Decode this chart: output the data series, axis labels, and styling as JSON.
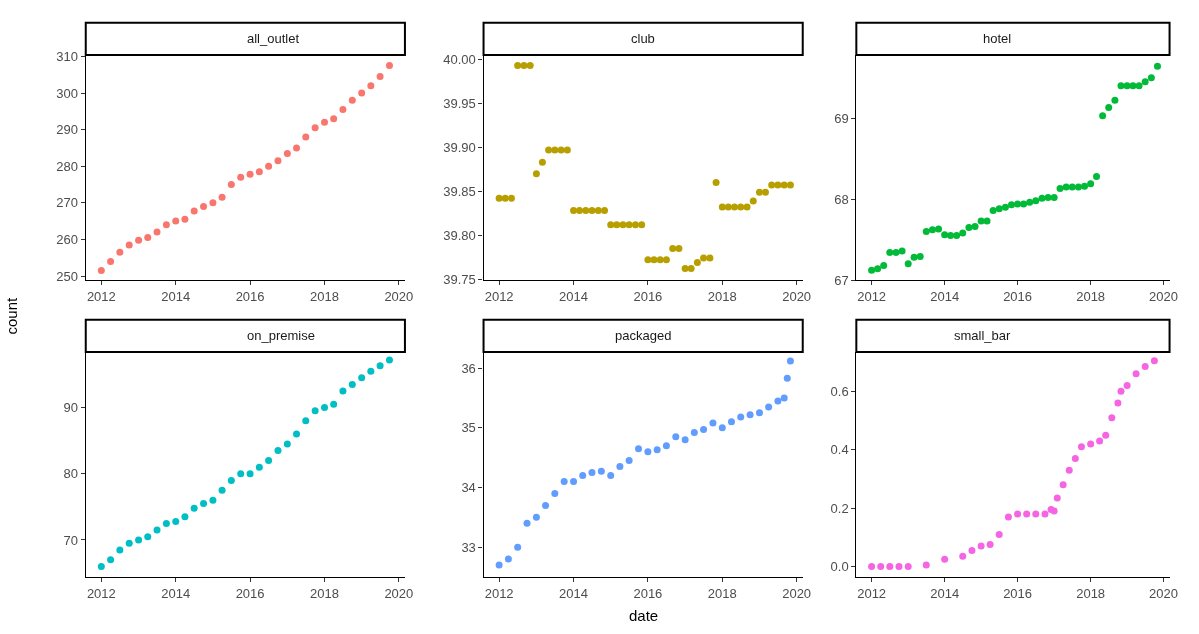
{
  "chart_data": [
    {
      "type": "scatter",
      "title": "all_outlet",
      "marker": "circle",
      "xlim": [
        "2011-08",
        "2020-03"
      ],
      "xticks": [
        "2012",
        "2014",
        "2016",
        "2018",
        "2020"
      ],
      "ylim": [
        248.9,
        310.4
      ],
      "yticks": [
        250,
        260,
        270,
        280,
        290,
        300,
        310
      ],
      "x": [
        "2012-01",
        "2012-04",
        "2012-07",
        "2012-10",
        "2013-01",
        "2013-04",
        "2013-07",
        "2013-10",
        "2014-01",
        "2014-04",
        "2014-07",
        "2014-10",
        "2015-01",
        "2015-04",
        "2015-07",
        "2015-10",
        "2016-01",
        "2016-04",
        "2016-07",
        "2016-10",
        "2017-01",
        "2017-04",
        "2017-07",
        "2017-10",
        "2018-01",
        "2018-04",
        "2018-07",
        "2018-10",
        "2019-01",
        "2019-04",
        "2019-07",
        "2019-10"
      ],
      "series": [
        {
          "color": "#f8766d",
          "values": [
            251.5,
            254,
            256.5,
            258.5,
            259.8,
            260.5,
            262,
            264,
            265,
            265.5,
            267.8,
            269,
            270,
            271.5,
            275,
            277,
            277.8,
            278.5,
            280,
            281.5,
            283.5,
            285,
            288,
            290.5,
            292,
            293,
            295.5,
            298,
            300,
            302,
            304.5,
            307.5
          ]
        }
      ]
    },
    {
      "type": "scatter",
      "title": "club",
      "marker": "circle",
      "xlim": [
        "2011-08",
        "2020-03"
      ],
      "xticks": [
        "2012",
        "2014",
        "2016",
        "2018",
        "2020"
      ],
      "ylim": [
        39.749,
        40.005
      ],
      "yticks": [
        {
          "value": 39.75,
          "label": "39.75"
        },
        {
          "value": 39.8,
          "label": "39.80"
        },
        {
          "value": 39.85,
          "label": "39.85"
        },
        {
          "value": 39.9,
          "label": "39.90"
        },
        {
          "value": 39.95,
          "label": "39.95"
        },
        {
          "value": 40.0,
          "label": "40.00"
        }
      ],
      "x": [
        "2012-01",
        "2012-03",
        "2012-05",
        "2012-07",
        "2012-09",
        "2012-11",
        "2013-01",
        "2013-03",
        "2013-05",
        "2013-07",
        "2013-09",
        "2013-11",
        "2014-01",
        "2014-03",
        "2014-05",
        "2014-07",
        "2014-09",
        "2014-11",
        "2015-01",
        "2015-03",
        "2015-05",
        "2015-07",
        "2015-09",
        "2015-11",
        "2016-01",
        "2016-03",
        "2016-05",
        "2016-07",
        "2016-09",
        "2016-11",
        "2017-01",
        "2017-03",
        "2017-05",
        "2017-07",
        "2017-09",
        "2017-11",
        "2018-01",
        "2018-03",
        "2018-05",
        "2018-07",
        "2018-09",
        "2018-11",
        "2019-01",
        "2019-03",
        "2019-05",
        "2019-07",
        "2019-09",
        "2019-11"
      ],
      "series": [
        {
          "color": "#b79f00",
          "values": [
            39.842,
            39.842,
            39.842,
            39.993,
            39.993,
            39.993,
            39.87,
            39.883,
            39.897,
            39.897,
            39.897,
            39.897,
            39.828,
            39.828,
            39.828,
            39.828,
            39.828,
            39.828,
            39.812,
            39.812,
            39.812,
            39.812,
            39.812,
            39.812,
            39.772,
            39.772,
            39.772,
            39.772,
            39.785,
            39.785,
            39.762,
            39.762,
            39.769,
            39.774,
            39.774,
            39.86,
            39.832,
            39.832,
            39.832,
            39.832,
            39.832,
            39.839,
            39.849,
            39.849,
            39.857,
            39.857,
            39.857,
            39.857
          ]
        }
      ]
    },
    {
      "type": "scatter",
      "title": "hotel",
      "marker": "circle",
      "xlim": [
        "2011-08",
        "2020-03"
      ],
      "xticks": [
        "2012",
        "2014",
        "2016",
        "2018",
        "2020"
      ],
      "ylim": [
        67,
        69.78
      ],
      "yticks": [
        67,
        68,
        69
      ],
      "x": [
        "2012-01",
        "2012-03",
        "2012-05",
        "2012-07",
        "2012-09",
        "2012-11",
        "2013-01",
        "2013-03",
        "2013-05",
        "2013-07",
        "2013-09",
        "2013-11",
        "2014-01",
        "2014-03",
        "2014-05",
        "2014-07",
        "2014-09",
        "2014-11",
        "2015-01",
        "2015-03",
        "2015-05",
        "2015-07",
        "2015-09",
        "2015-11",
        "2016-01",
        "2016-03",
        "2016-05",
        "2016-07",
        "2016-09",
        "2016-11",
        "2017-01",
        "2017-03",
        "2017-05",
        "2017-07",
        "2017-09",
        "2017-11",
        "2018-01",
        "2018-03",
        "2018-05",
        "2018-07",
        "2018-09",
        "2018-11",
        "2019-01",
        "2019-03",
        "2019-05",
        "2019-07",
        "2019-09",
        "2019-11"
      ],
      "series": [
        {
          "color": "#00ba38",
          "values": [
            67.12,
            67.14,
            67.18,
            67.34,
            67.34,
            67.36,
            67.2,
            67.28,
            67.29,
            67.6,
            67.62,
            67.63,
            67.56,
            67.55,
            67.55,
            67.58,
            67.65,
            67.66,
            67.73,
            67.73,
            67.86,
            67.88,
            67.9,
            67.93,
            67.94,
            67.94,
            67.96,
            67.98,
            68.01,
            68.02,
            68.02,
            68.13,
            68.15,
            68.15,
            68.15,
            68.16,
            68.19,
            68.28,
            69.03,
            69.13,
            69.22,
            69.4,
            69.4,
            69.4,
            69.4,
            69.45,
            69.5,
            69.64
          ]
        }
      ]
    },
    {
      "type": "scatter",
      "title": "on_premise",
      "ylabel": "count",
      "marker": "circle",
      "xlim": [
        "2011-08",
        "2020-03"
      ],
      "xticks": [
        "2012",
        "2014",
        "2016",
        "2018",
        "2020"
      ],
      "ylim": [
        64.4,
        98.4
      ],
      "yticks": [
        70,
        80,
        90
      ],
      "x": [
        "2012-01",
        "2012-04",
        "2012-07",
        "2012-10",
        "2013-01",
        "2013-04",
        "2013-07",
        "2013-10",
        "2014-01",
        "2014-04",
        "2014-07",
        "2014-10",
        "2015-01",
        "2015-04",
        "2015-07",
        "2015-10",
        "2016-01",
        "2016-04",
        "2016-07",
        "2016-10",
        "2017-01",
        "2017-04",
        "2017-07",
        "2017-10",
        "2018-01",
        "2018-04",
        "2018-07",
        "2018-10",
        "2019-01",
        "2019-04",
        "2019-07",
        "2019-10"
      ],
      "series": [
        {
          "color": "#00bfc4",
          "values": [
            66,
            67,
            68.5,
            69.5,
            70,
            70.5,
            71.5,
            72.5,
            72.8,
            73.5,
            74.8,
            75.5,
            76,
            77.5,
            79,
            80,
            80,
            81,
            82,
            83.5,
            84.5,
            86,
            88,
            89.5,
            90,
            90.5,
            92.5,
            93.5,
            94.5,
            95.5,
            96.3,
            97.2
          ]
        }
      ]
    },
    {
      "type": "scatter",
      "title": "packaged",
      "xlabel": "date",
      "marker": "circle",
      "xlim": [
        "2011-08",
        "2020-03"
      ],
      "xticks": [
        "2012",
        "2014",
        "2016",
        "2018",
        "2020"
      ],
      "ylim": [
        32.5,
        36.27
      ],
      "yticks": [
        33,
        34,
        35,
        36
      ],
      "x": [
        "2012-01",
        "2012-04",
        "2012-07",
        "2012-10",
        "2013-01",
        "2013-04",
        "2013-07",
        "2013-10",
        "2014-01",
        "2014-04",
        "2014-07",
        "2014-10",
        "2015-01",
        "2015-04",
        "2015-07",
        "2015-10",
        "2016-01",
        "2016-04",
        "2016-07",
        "2016-10",
        "2017-01",
        "2017-04",
        "2017-07",
        "2017-10",
        "2018-01",
        "2018-04",
        "2018-07",
        "2018-10",
        "2019-01",
        "2019-04",
        "2019-07",
        "2019-09",
        "2019-10",
        "2019-11"
      ],
      "series": [
        {
          "color": "#619cff",
          "values": [
            32.7,
            32.8,
            33.0,
            33.4,
            33.5,
            33.7,
            33.9,
            34.1,
            34.1,
            34.2,
            34.25,
            34.27,
            34.2,
            34.35,
            34.45,
            34.65,
            34.6,
            34.63,
            34.7,
            34.85,
            34.8,
            34.92,
            34.97,
            35.08,
            35.0,
            35.1,
            35.18,
            35.22,
            35.25,
            35.35,
            35.45,
            35.5,
            35.83,
            36.12
          ]
        }
      ]
    },
    {
      "type": "scatter",
      "title": "small_bar",
      "marker": "circle",
      "xlim": [
        "2011-08",
        "2020-03"
      ],
      "xticks": [
        "2012",
        "2014",
        "2016",
        "2018",
        "2020"
      ],
      "ylim": [
        -0.036,
        0.735
      ],
      "yticks": [
        {
          "value": 0,
          "label": "0.0"
        },
        {
          "value": 0.2,
          "label": "0.2"
        },
        {
          "value": 0.4,
          "label": "0.4"
        },
        {
          "value": 0.6,
          "label": "0.6"
        }
      ],
      "x": [
        "2012-01",
        "2012-04",
        "2012-07",
        "2012-10",
        "2013-01",
        "2013-07",
        "2014-01",
        "2014-07",
        "2014-10",
        "2015-01",
        "2015-04",
        "2015-07",
        "2015-10",
        "2016-01",
        "2016-04",
        "2016-07",
        "2016-10",
        "2016-12",
        "2017-01",
        "2017-02",
        "2017-04",
        "2017-06",
        "2017-08",
        "2017-10",
        "2018-01",
        "2018-04",
        "2018-06",
        "2018-08",
        "2018-10",
        "2018-11",
        "2019-01",
        "2019-04",
        "2019-07",
        "2019-10"
      ],
      "series": [
        {
          "color": "#f564e3",
          "values": [
            0,
            0,
            0,
            0,
            0,
            0.005,
            0.025,
            0.035,
            0.055,
            0.07,
            0.075,
            0.11,
            0.17,
            0.18,
            0.18,
            0.18,
            0.18,
            0.195,
            0.19,
            0.235,
            0.28,
            0.33,
            0.37,
            0.41,
            0.42,
            0.43,
            0.45,
            0.51,
            0.56,
            0.6,
            0.62,
            0.66,
            0.685,
            0.705
          ]
        }
      ]
    }
  ]
}
